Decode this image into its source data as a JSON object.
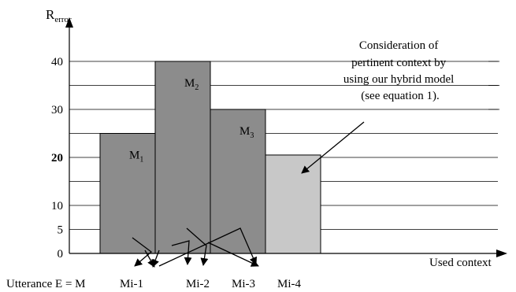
{
  "chart_data": {
    "type": "bar",
    "ylabel_main": "R",
    "ylabel_sub": "error",
    "xlabel": "Used context",
    "ytick_labels": [
      {
        "value": 0,
        "label": "0"
      },
      {
        "value": 5,
        "label": "5"
      },
      {
        "value": 10,
        "label": "10"
      },
      {
        "value": 20,
        "label": "20"
      },
      {
        "value": 30,
        "label": "30"
      },
      {
        "value": 40,
        "label": "40"
      }
    ],
    "gridlines": [
      5,
      10,
      15,
      20,
      25,
      30,
      35,
      40
    ],
    "ylim": [
      0,
      45
    ],
    "bars": [
      {
        "category": "Mi-1",
        "value": 25,
        "label_main": "M",
        "label_sub": "1",
        "color": "#8c8c8c"
      },
      {
        "category": "Mi-2",
        "value": 40,
        "label_main": "M",
        "label_sub": "2",
        "color": "#8c8c8c"
      },
      {
        "category": "Mi-3",
        "value": 30,
        "label_main": "M",
        "label_sub": "3",
        "color": "#8c8c8c"
      },
      {
        "category": "Mi-4",
        "value": 20.5,
        "label_main": "",
        "label_sub": "",
        "color": "#c8c8c8"
      }
    ],
    "x_prefix_label": "Utterance E = M",
    "annotation_lines": [
      "Consideration of",
      "pertinent context by",
      "using our hybrid model",
      "(see equation 1)."
    ]
  }
}
